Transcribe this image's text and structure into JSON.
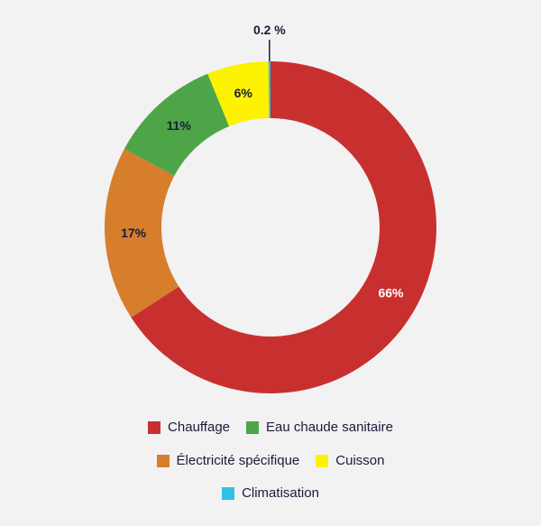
{
  "chart_data": {
    "type": "pie",
    "title": "",
    "series": [
      {
        "name": "",
        "slices": [
          {
            "label": "Chauffage",
            "value": 66,
            "value_label": "66%",
            "color": "#c8302f",
            "label_color": "#ffffff"
          },
          {
            "label": "Électricité spécifique",
            "value": 17,
            "value_label": "17%",
            "color": "#d67e2c",
            "label_color": "#1b1b3a"
          },
          {
            "label": "Eau chaude sanitaire",
            "value": 11,
            "value_label": "11%",
            "color": "#4ea548",
            "label_color": "#1b1b3a"
          },
          {
            "label": "Cuisson",
            "value": 6,
            "value_label": "6%",
            "color": "#fdf200",
            "label_color": "#1b1b3a"
          },
          {
            "label": "Climatisation",
            "value": 0.2,
            "value_label": "0.2 %",
            "color": "#2fc0e6",
            "label_color": "#1b1b3a"
          }
        ]
      }
    ],
    "legend": {
      "placement": "bottom",
      "rows": [
        [
          "Chauffage",
          "Eau chaude sanitaire"
        ],
        [
          "Électricité spécifique",
          "Cuisson"
        ],
        [
          "Climatisation"
        ]
      ]
    },
    "style": "donut"
  }
}
